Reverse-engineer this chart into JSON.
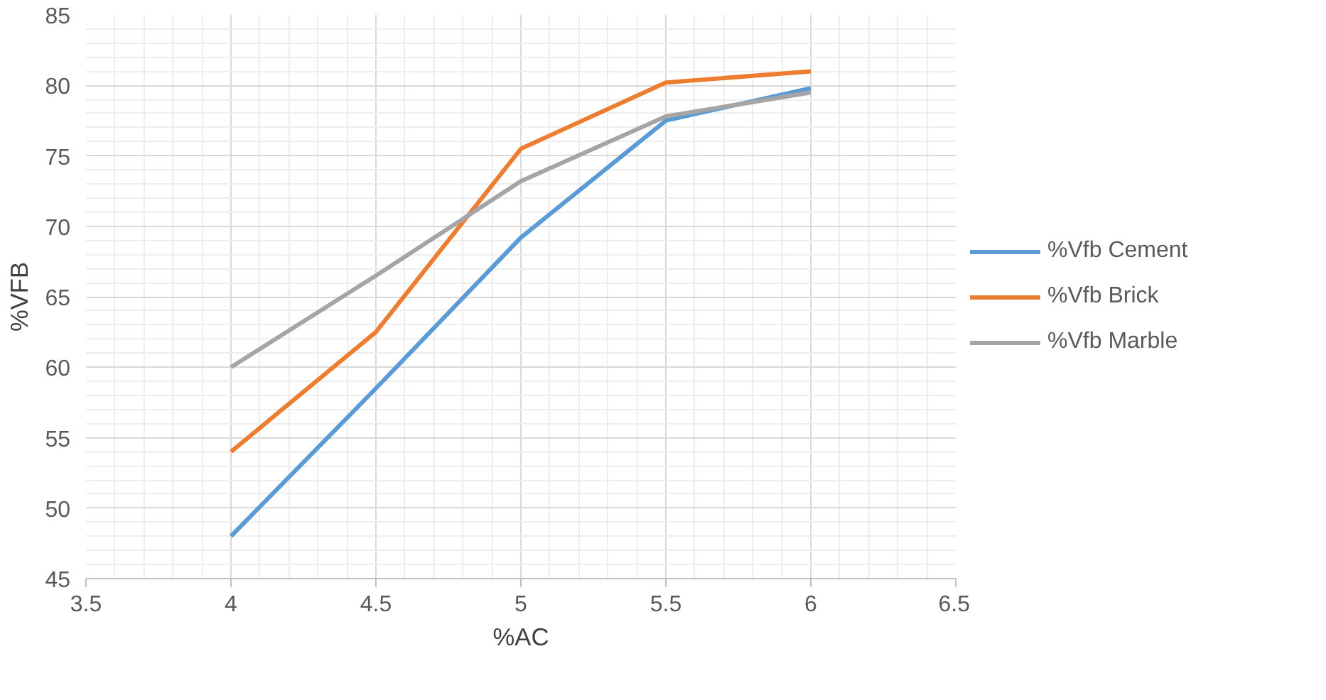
{
  "chart_data": {
    "type": "line",
    "xlabel": "%AC",
    "ylabel": "%VFB",
    "x": [
      4,
      4.5,
      5,
      5.5,
      6
    ],
    "series": [
      {
        "name": "%Vfb Cement",
        "color": "#5b9bd5",
        "values": [
          48,
          58.5,
          69.2,
          77.5,
          79.8
        ]
      },
      {
        "name": "%Vfb Brick",
        "color": "#ed7d31",
        "values": [
          54,
          62.5,
          75.5,
          80.2,
          81
        ]
      },
      {
        "name": "%Vfb Marble",
        "color": "#a5a5a5",
        "values": [
          60,
          66.5,
          73.2,
          77.8,
          79.5
        ]
      }
    ],
    "xlim": [
      3.5,
      6.5
    ],
    "ylim": [
      45,
      85
    ],
    "xticks": [
      3.5,
      4,
      4.5,
      5,
      5.5,
      6,
      6.5
    ],
    "yticks": [
      45,
      50,
      55,
      60,
      65,
      70,
      75,
      80,
      85
    ],
    "grid": true,
    "legend": "right",
    "marker": "none",
    "line_style": "solid"
  }
}
